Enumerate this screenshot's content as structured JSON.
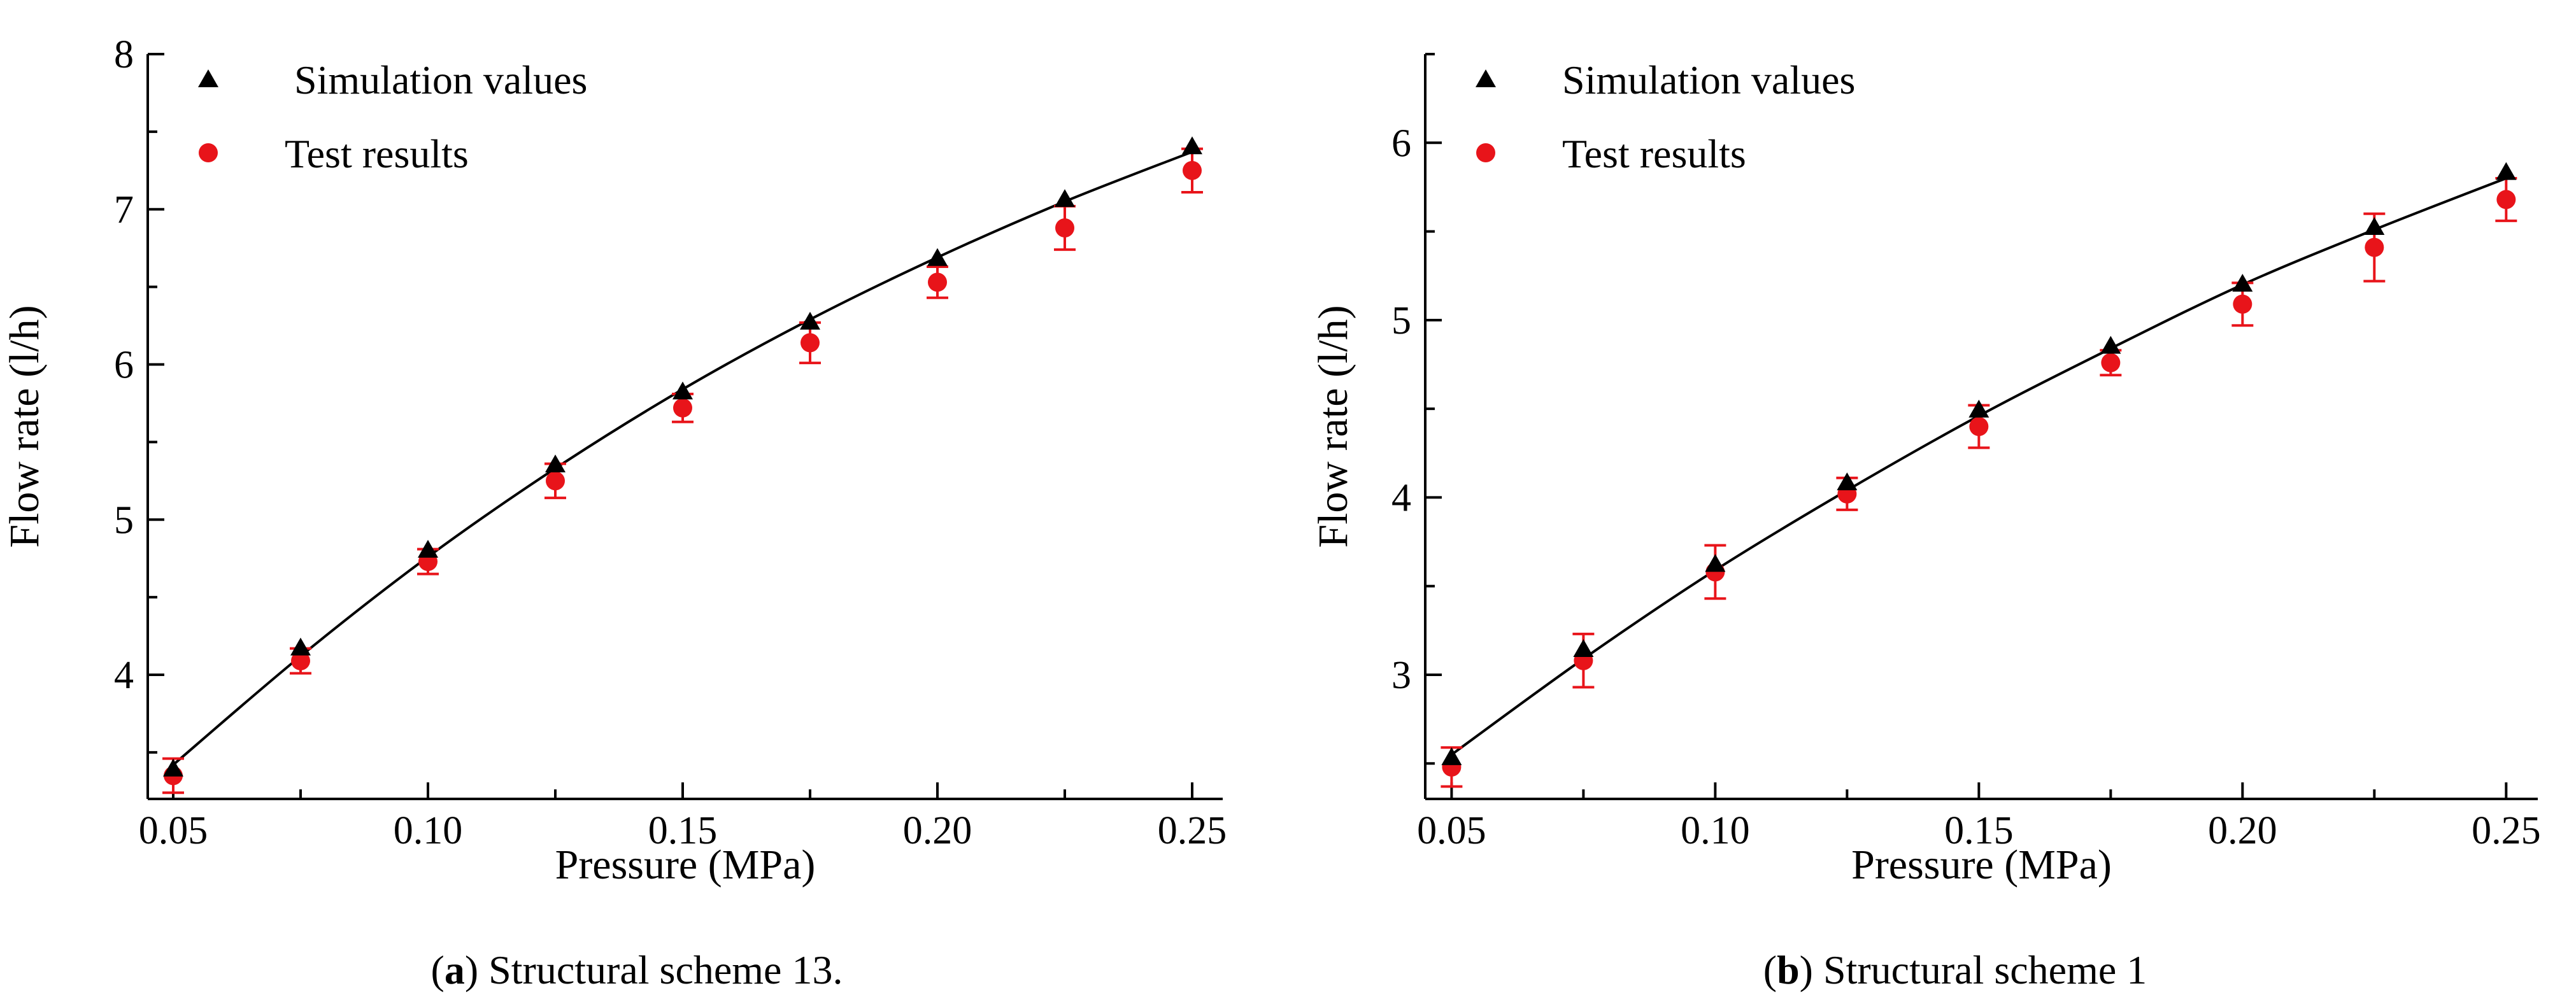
{
  "chart_data": [
    {
      "type": "scatter",
      "panel_id": "a",
      "caption_letter": "a",
      "caption_open": "(",
      "caption_close": ") ",
      "caption_text": "Structural scheme 13.",
      "xlabel": "Pressure (MPa)",
      "ylabel": "Flow rate (l/h)",
      "xlim": [
        0.045,
        0.256
      ],
      "ylim": [
        3.2,
        8.0
      ],
      "xticks": [
        0.05,
        0.075,
        0.1,
        0.125,
        0.15,
        0.175,
        0.2,
        0.225,
        0.25
      ],
      "xtick_labels": [
        "0.05",
        "",
        "0.10",
        "",
        "0.15",
        "",
        "0.20",
        "",
        "0.25"
      ],
      "yticks": [
        3.5,
        4,
        4.5,
        5,
        5.5,
        6,
        6.5,
        7,
        7.5,
        8
      ],
      "ytick_labels": [
        "",
        "4",
        "",
        "5",
        "",
        "6",
        "",
        "7",
        "",
        "8"
      ],
      "legend": {
        "position": "top-left"
      },
      "series": [
        {
          "name": "Simulation values",
          "marker": "triangle",
          "color": "#000000",
          "x": [
            0.05,
            0.075,
            0.1,
            0.125,
            0.15,
            0.175,
            0.2,
            0.225,
            0.25
          ],
          "y": [
            3.39,
            4.17,
            4.8,
            5.35,
            5.82,
            6.27,
            6.68,
            7.06,
            7.4
          ]
        },
        {
          "name": "Test results",
          "marker": "circle",
          "color": "#e8141a",
          "x": [
            0.05,
            0.075,
            0.1,
            0.125,
            0.15,
            0.175,
            0.2,
            0.225,
            0.25
          ],
          "y": [
            3.35,
            4.09,
            4.73,
            5.25,
            5.72,
            6.14,
            6.53,
            6.88,
            7.25
          ],
          "error": [
            0.11,
            0.08,
            0.08,
            0.11,
            0.09,
            0.13,
            0.1,
            0.14,
            0.14
          ]
        }
      ],
      "fit_line": {
        "x": [
          0.05,
          0.075,
          0.1,
          0.125,
          0.15,
          0.175,
          0.2,
          0.225,
          0.25
        ],
        "y": [
          3.42,
          4.12,
          4.76,
          5.33,
          5.84,
          6.29,
          6.69,
          7.05,
          7.37
        ]
      }
    },
    {
      "type": "scatter",
      "panel_id": "b",
      "caption_letter": "b",
      "caption_open": "(",
      "caption_close": ") ",
      "caption_text": "Structural scheme 1",
      "xlabel": "Pressure (MPa)",
      "ylabel": "Flow rate (l/h)",
      "xlim": [
        0.045,
        0.256
      ],
      "ylim": [
        2.3,
        6.5
      ],
      "xticks": [
        0.05,
        0.075,
        0.1,
        0.125,
        0.15,
        0.175,
        0.2,
        0.225,
        0.25
      ],
      "xtick_labels": [
        "0.05",
        "",
        "0.10",
        "",
        "0.15",
        "",
        "0.20",
        "",
        "0.25"
      ],
      "yticks": [
        2.5,
        3,
        3.5,
        4,
        4.5,
        5,
        5.5,
        6,
        6.5
      ],
      "ytick_labels": [
        "",
        "3",
        "",
        "4",
        "",
        "5",
        "",
        "6",
        ""
      ],
      "legend": {
        "position": "top-left"
      },
      "series": [
        {
          "name": "Simulation values",
          "marker": "triangle",
          "color": "#000000",
          "x": [
            0.05,
            0.075,
            0.1,
            0.125,
            0.15,
            0.175,
            0.2,
            0.225,
            0.25
          ],
          "y": [
            2.53,
            3.14,
            3.62,
            4.08,
            4.49,
            4.85,
            5.2,
            5.52,
            5.83
          ]
        },
        {
          "name": "Test results",
          "marker": "circle",
          "color": "#e8141a",
          "x": [
            0.05,
            0.075,
            0.1,
            0.125,
            0.15,
            0.175,
            0.2,
            0.225,
            0.25
          ],
          "y": [
            2.48,
            3.08,
            3.58,
            4.02,
            4.4,
            4.76,
            5.09,
            5.41,
            5.68
          ],
          "error": [
            0.11,
            0.15,
            0.15,
            0.09,
            0.12,
            0.07,
            0.12,
            0.19,
            0.12
          ]
        }
      ],
      "fit_line": {
        "x": [
          0.05,
          0.075,
          0.1,
          0.125,
          0.15,
          0.175,
          0.2,
          0.225,
          0.25
        ],
        "y": [
          2.55,
          3.09,
          3.59,
          4.04,
          4.46,
          4.84,
          5.2,
          5.51,
          5.8
        ]
      }
    }
  ]
}
